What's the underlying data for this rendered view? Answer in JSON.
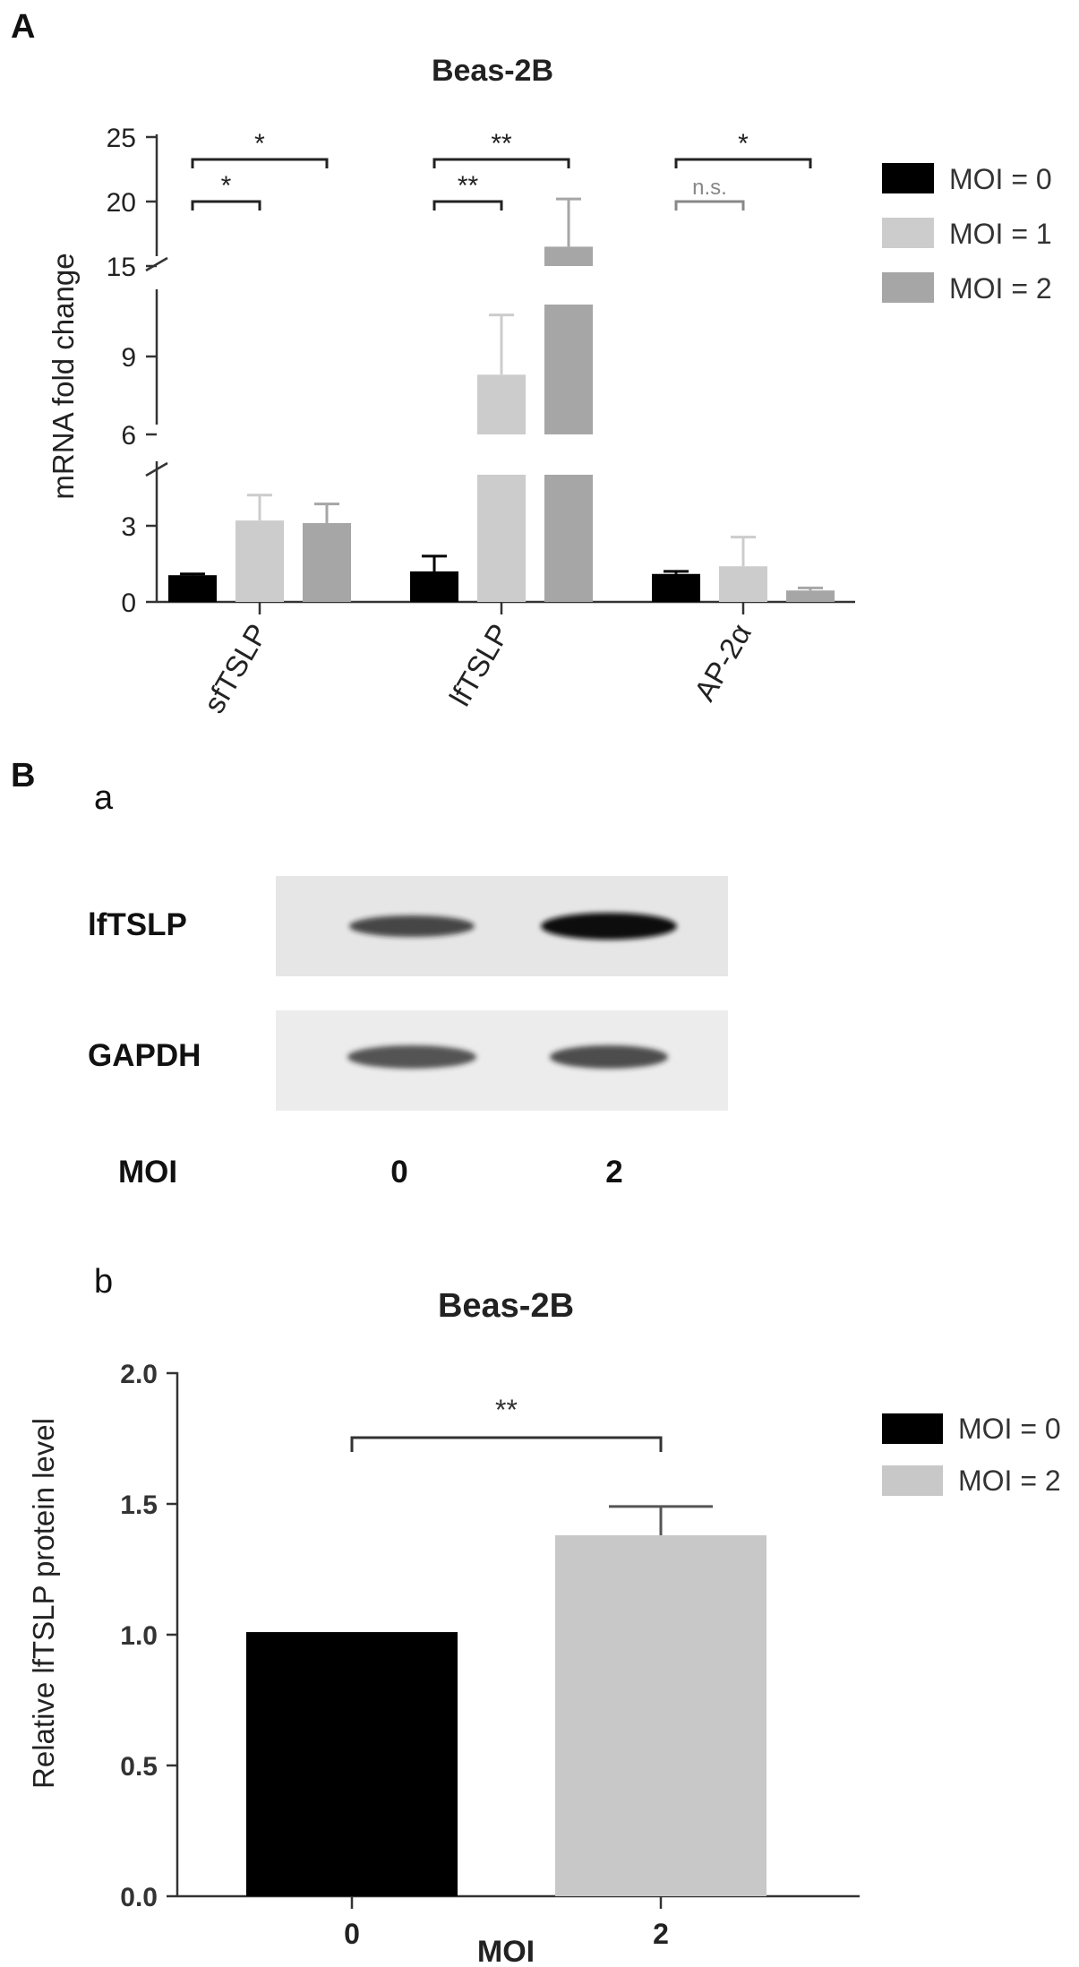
{
  "panels": {
    "A": "A",
    "B": "B",
    "Ba": "a",
    "Bb": "b"
  },
  "chart_data": [
    {
      "id": "A",
      "type": "bar",
      "title": "Beas-2B",
      "ylabel": "mRNA fold change",
      "xlabel": "",
      "categories": [
        "sfTSLP",
        "lfTSLP",
        "AP-2α"
      ],
      "series": [
        {
          "name": "MOI = 0",
          "color": "#000000",
          "values": [
            1.05,
            1.2,
            1.1
          ],
          "errors": [
            0.05,
            0.6,
            0.1
          ]
        },
        {
          "name": "MOI = 1",
          "color": "#cccccc",
          "values": [
            3.2,
            8.3,
            1.4
          ],
          "errors": [
            1.0,
            2.3,
            1.15
          ]
        },
        {
          "name": "MOI = 2",
          "color": "#a6a6a6",
          "values": [
            3.1,
            16.5,
            0.45
          ],
          "errors": [
            0.75,
            3.7,
            0.1
          ]
        }
      ],
      "y_axis_broken": true,
      "y_segments": [
        [
          0,
          5
        ],
        [
          6,
          11
        ],
        [
          15,
          25
        ]
      ],
      "yticks": [
        "0",
        "3",
        "6",
        "9",
        "15",
        "20",
        "25"
      ],
      "legend_position": "right",
      "significance": [
        {
          "category": 0,
          "from": 0,
          "to": 1,
          "label": "*"
        },
        {
          "category": 0,
          "from": 0,
          "to": 2,
          "label": "*"
        },
        {
          "category": 1,
          "from": 0,
          "to": 1,
          "label": "**"
        },
        {
          "category": 1,
          "from": 0,
          "to": 2,
          "label": "**"
        },
        {
          "category": 2,
          "from": 0,
          "to": 1,
          "label": "n.s."
        },
        {
          "category": 2,
          "from": 0,
          "to": 2,
          "label": "*"
        }
      ]
    },
    {
      "id": "B-a",
      "type": "western-blot",
      "rows": [
        {
          "label": "lfTSLP",
          "band_intensity": [
            0.78,
            1.0
          ]
        },
        {
          "label": "GAPDH",
          "band_intensity": [
            0.75,
            0.78
          ]
        }
      ],
      "lane_header": "MOI",
      "lanes": [
        "0",
        "2"
      ]
    },
    {
      "id": "B-b",
      "type": "bar",
      "title": "Beas-2B",
      "ylabel": "Relative lfTSLP protein level",
      "xlabel": "MOI",
      "categories": [
        "0",
        "2"
      ],
      "series": [
        {
          "name": "MOI = 0",
          "color": "#000000",
          "values": [
            1.01,
            null
          ],
          "errors": [
            0,
            null
          ]
        },
        {
          "name": "MOI = 2",
          "color": "#c8c8c8",
          "values": [
            null,
            1.38
          ],
          "errors": [
            null,
            0.11
          ]
        }
      ],
      "ylim": [
        0,
        2.0
      ],
      "yticks": [
        "0.0",
        "0.5",
        "1.0",
        "1.5",
        "2.0"
      ],
      "legend_position": "right",
      "significance": [
        {
          "from": 0,
          "to": 1,
          "label": "**"
        }
      ]
    }
  ]
}
